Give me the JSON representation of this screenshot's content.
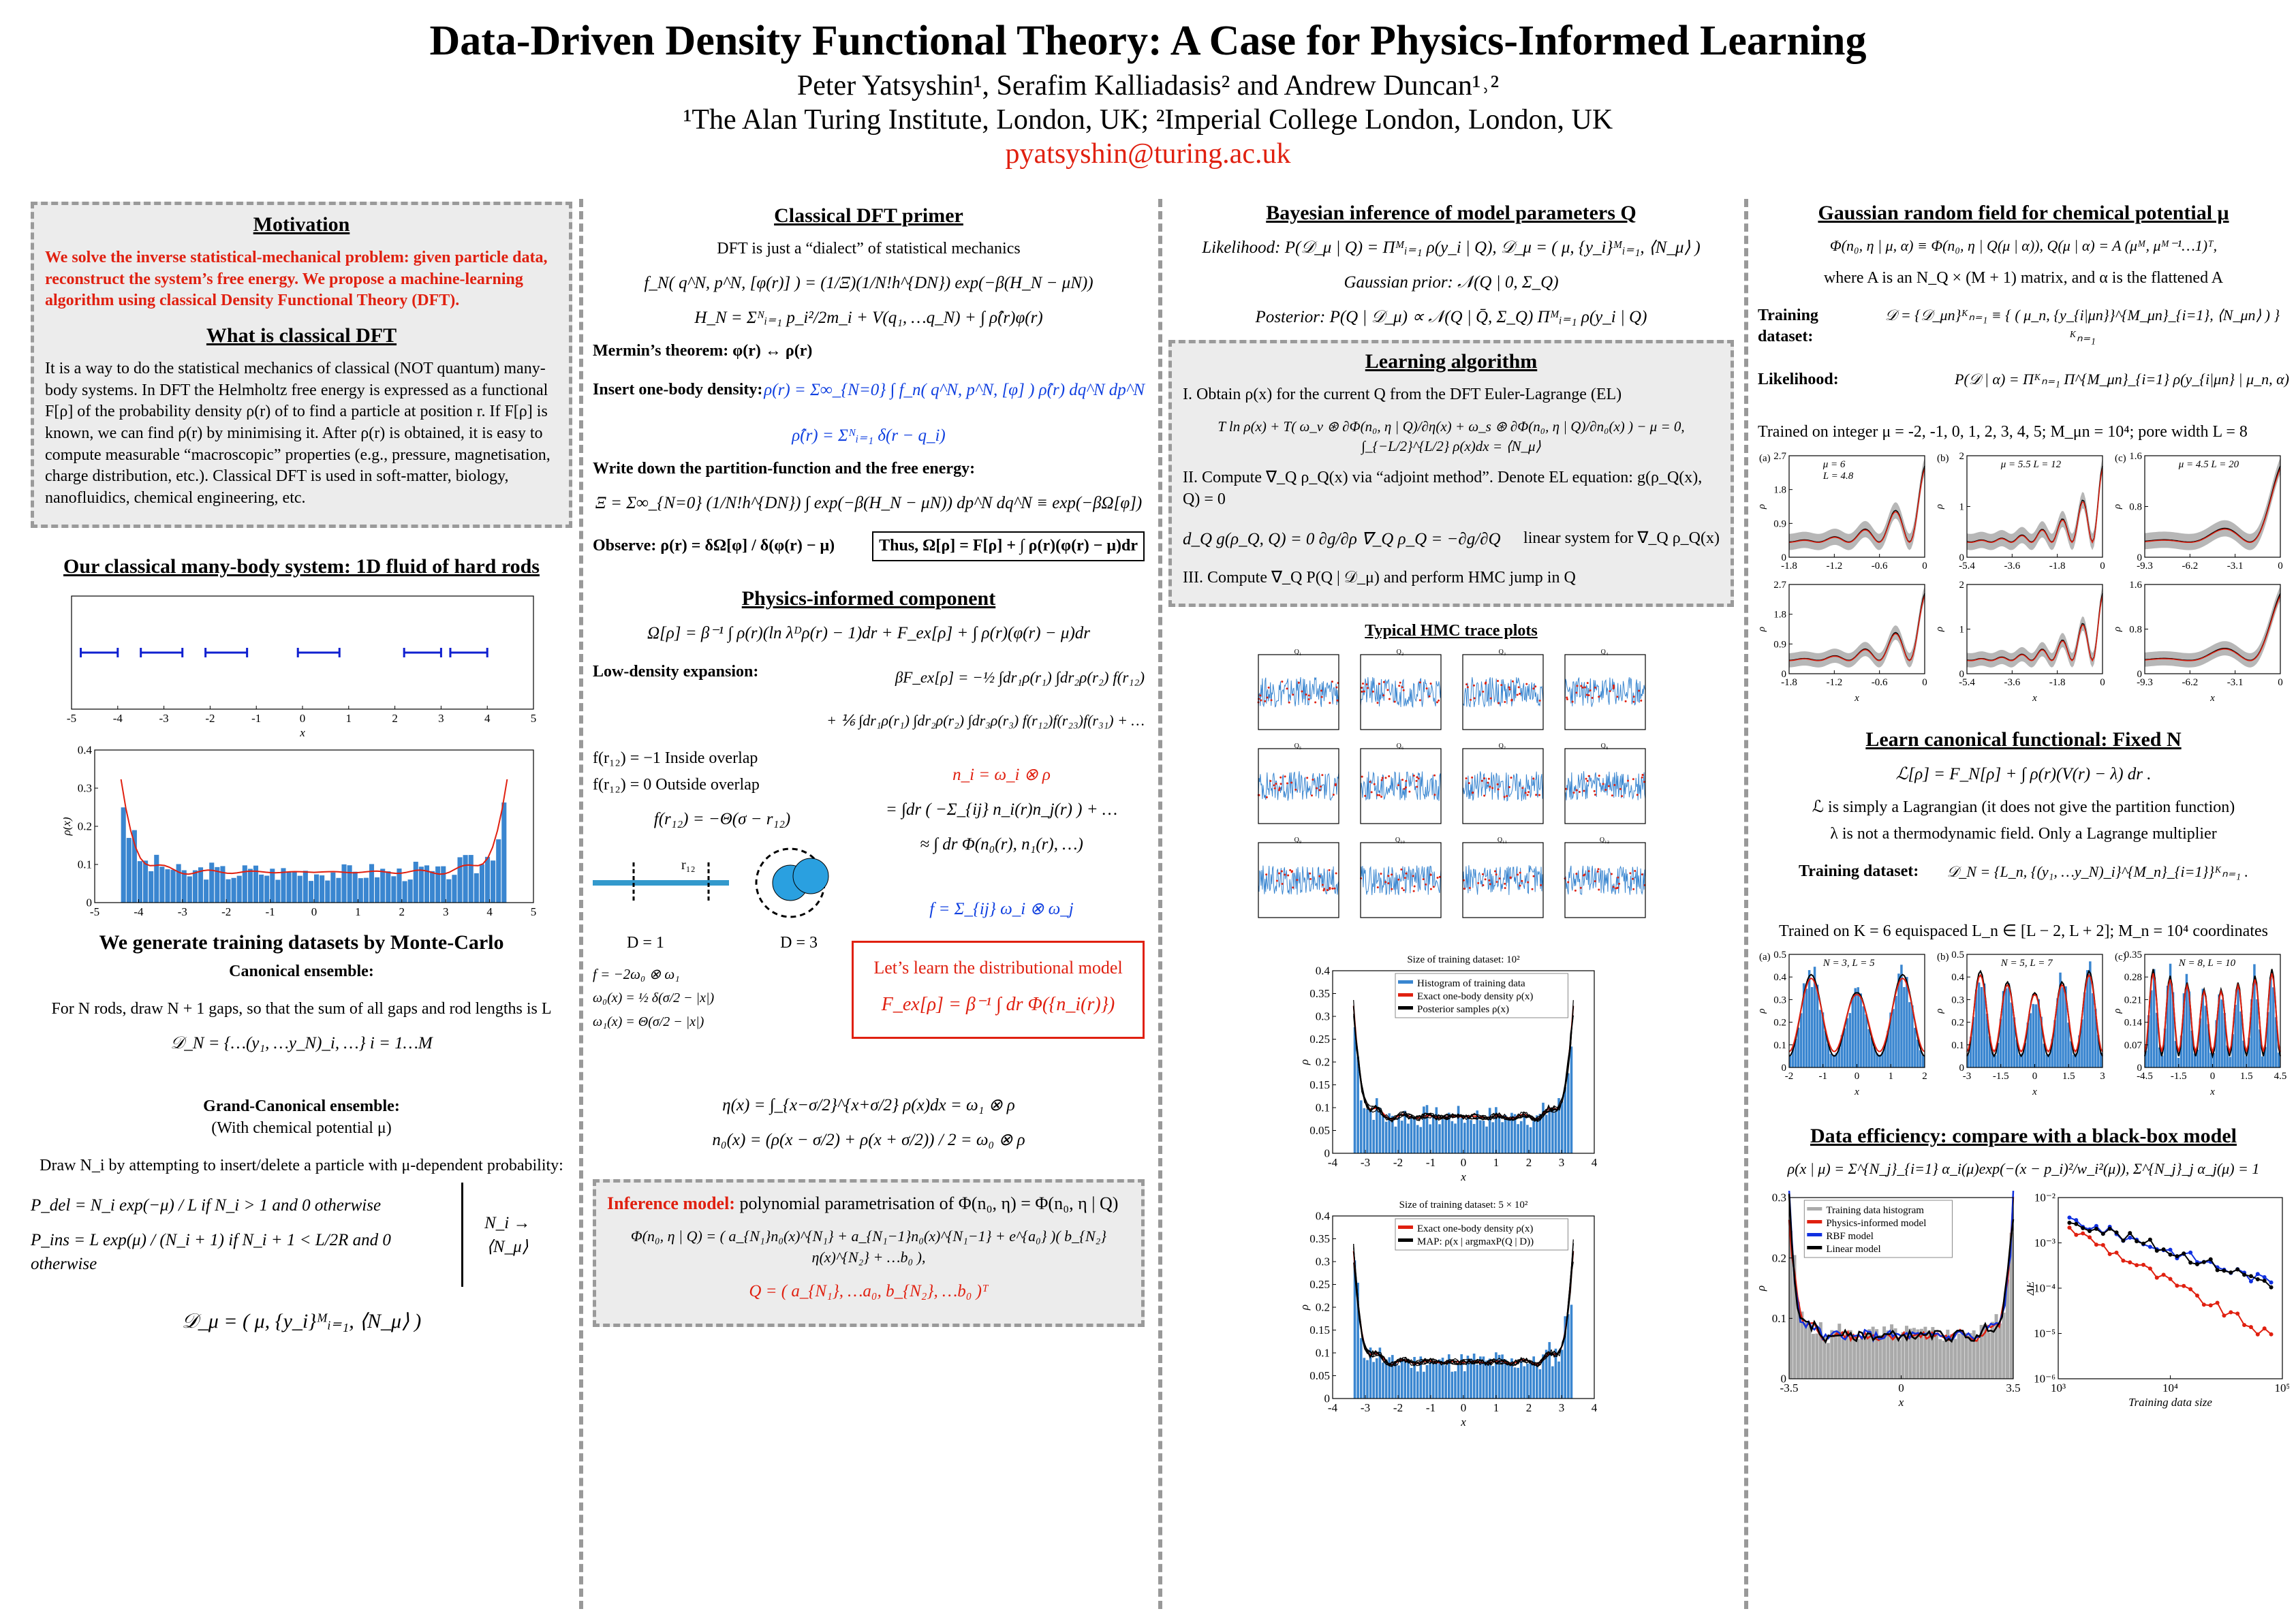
{
  "header": {
    "title": "Data-Driven Density Functional Theory: A Case for Physics-Informed Learning",
    "authors": "Peter Yatsyshin¹, Serafim Kalliadasis² and Andrew Duncan¹˒²",
    "affiliation": "¹The Alan Turing Institute, London, UK; ²Imperial College London, London, UK",
    "email": "pyatsyshin@turing.ac.uk"
  },
  "motivation": {
    "heading": "Motivation",
    "text": "We solve the inverse statistical-mechanical problem: given particle data, reconstruct the system’s free energy. We propose a machine-learning algorithm using classical Density Functional Theory (DFT).",
    "dft_heading": "What is classical DFT",
    "dft_text": "It is a way to do the statistical mechanics of classical (NOT quantum) many-body systems. In DFT the Helmholtz free energy is expressed as a functional F[ρ] of the probability density ρ(r) of to find a particle at position r. If F[ρ] is known, we can find ρ(r) by minimising it. After ρ(r) is obtained, it is easy to compute measurable “macroscopic” properties (e.g., pressure, magnetisation, charge distribution, etc.). Classical DFT is used in soft-matter, biology, nanofluidics, chemical engineering, etc."
  },
  "rods": {
    "heading": "Our classical many-body system: 1D fluid of hard rods",
    "positions": {
      "x_ticks": [
        "-5",
        "-4",
        "-3",
        "-2",
        "-1",
        "0",
        "1",
        "2",
        "3",
        "4",
        "5"
      ],
      "x_label": "x"
    },
    "density": {
      "x_ticks": [
        "-5",
        "-4",
        "-3",
        "-2",
        "-1",
        "0",
        "1",
        "2",
        "3",
        "4",
        "5"
      ],
      "y_ticks": [
        "0",
        "0.1",
        "0.2",
        "0.3",
        "0.4"
      ],
      "y_label": "ρ(x)"
    }
  },
  "mc": {
    "heading": "We generate training datasets by Monte-Carlo",
    "canonical": "Canonical ensemble:",
    "canonical_text": "For N rods, draw N + 1 gaps, so that the sum of all gaps and rod lengths is L",
    "canonical_eq": "𝒟_N = {…(y₁, …y_N)_i, …}     i = 1…M",
    "grand": "Grand-Canonical ensemble:",
    "grand_sub": "(With chemical potential μ)",
    "grand_text": "Draw N_i by attempting to insert/delete a particle with μ-dependent probability:",
    "p_del": "P_del = N_i exp(−μ) / L   if  N_i > 1  and  0  otherwise",
    "p_ins": "P_ins = L exp(μ) / (N_i + 1)   if  N_i + 1 < L/2R  and  0  otherwise",
    "limit": "N_i → ⟨N_μ⟩",
    "d_mu": "𝒟_μ = ( μ, {y_i}ᴹᵢ₌₁, ⟨N_μ⟩ )"
  },
  "primer": {
    "heading": "Classical DFT primer",
    "intro": "DFT is just a “dialect” of statistical mechanics",
    "eq1": "f_N( q^N, p^N, [φ(r)] ) = (1/Ξ)(1/N!h^{DN}) exp(−β(H_N − μN))",
    "eq2": "H_N = Σᴺᵢ₌₁ p_i²/2m_i + V(q₁, …q_N) + ∫ ρ̂(r)φ(r)",
    "mermin": "Mermin’s theorem:  φ(r) ↔ ρ(r)",
    "insert_label": "Insert one-body density:",
    "insert_eq": "ρ(r) = Σ∞_{N=0} ∫ f_n( q^N, p^N, [φ] ) ρ̂(r) dq^N dp^N",
    "insert_eq2": "ρ̂(r) = Σᴺᵢ₌₁ δ(r − q_i)",
    "partition_label": "Write down the partition-function and the free energy:",
    "partition_eq": "Ξ = Σ∞_{N=0} (1/N!h^{DN}) ∫ exp(−β(H_N − μN)) dp^N dq^N ≡ exp(−βΩ[φ])",
    "observe": "Observe:  ρ(r) = δΩ[φ] / δ(φ(r) − μ)",
    "thus": "Thus,  Ω[ρ] = F[ρ] + ∫ ρ(r)(φ(r) − μ)dr"
  },
  "physics": {
    "heading": "Physics-informed component",
    "omega_eq": "Ω[ρ] = β⁻¹ ∫ ρ(r)(ln λᴰρ(r) − 1)dr + F_ex[ρ] + ∫ ρ(r)(φ(r) − μ)dr",
    "low_label": "Low-density expansion:",
    "low_eq": "βF_ex[ρ] = −½ ∫dr₁ρ(r₁) ∫dr₂ρ(r₂) f(r₁₂)",
    "low_eq2": "+ ⅙ ∫dr₁ρ(r₁) ∫dr₂ρ(r₂) ∫dr₃ρ(r₃) f(r₁₂)f(r₂₃)f(r₃₁) + …",
    "f1": "f(r₁₂) = −1   Inside overlap",
    "f2": "f(r₁₂) = 0     Outside overlap",
    "f3": "f(r₁₂) = −Θ(σ − r₁₂)",
    "ni": "n_i = ω_i ⊗ ρ",
    "int1": "= ∫dr ( −Σ_{ij} n_i(r)n_j(r) ) + …",
    "int2": "≈ ∫ dr Φ(n₀(r), n₁(r), …)",
    "r12": "r₁₂",
    "d1": "D = 1",
    "d3": "D = 3",
    "d1_f": "f = −2ω₀ ⊗ ω₁",
    "d1_w0": "ω₀(x) = ½ δ(σ/2 − |x|)",
    "d1_w1": "ω₁(x) = Θ(σ/2 − |x|)",
    "fsum": "f = Σ_{ij} ω_i ⊗ ω_j",
    "box_title": "Let’s learn the distributional model",
    "box_eq": "F_ex[ρ] = β⁻¹ ∫ dr Φ({n_i(r)})",
    "eta_eq": "η(x) = ∫_{x−σ/2}^{x+σ/2} ρ(x)dx = ω₁ ⊗ ρ",
    "n0_eq": "n₀(x) = (ρ(x − σ/2) + ρ(x + σ/2)) / 2 = ω₀ ⊗ ρ"
  },
  "inference": {
    "label": "Inference model:",
    "text": "polynomial parametrisation of Φ(n₀, η) = Φ(n₀, η | Q)",
    "phi_eq": "Φ(n₀, η | Q) = ( a_{N₁}n₀(x)^{N₁} + a_{N₁−1}n₀(x)^{N₁−1} + e^{a₀} )( b_{N₂}η(x)^{N₂} + …b₀ ),",
    "q_eq": "Q = ( a_{N₁}, …a₀, b_{N₂}, …b₀ )ᵀ"
  },
  "bayes": {
    "heading": "Bayesian inference of model parameters Q",
    "likelihood": "Likelihood:  P(𝒟_μ | Q) = Πᴹᵢ₌₁ ρ(y_i | Q),   𝒟_μ = ( μ, {y_i}ᴹᵢ₌₁, ⟨N_μ⟩ )",
    "prior": "Gaussian prior:  𝒩(Q | 0, Σ_Q)",
    "posterior": "Posterior:  P(Q | 𝒟_μ) ∝ 𝒩(Q | Q̄, Σ_Q) Πᴹᵢ₌₁ ρ(y_i | Q)"
  },
  "learning": {
    "heading": "Learning algorithm",
    "step1": "I.      Obtain ρ(x) for the current Q from the DFT Euler-Lagrange (EL)",
    "eq1": "T ln ρ(x) + T( ω_v ⊛ ∂Φ(n₀, η | Q)/∂η(x) + ω_s ⊛ ∂Φ(n₀, η | Q)/∂n₀(x) ) − μ = 0,   ∫_{−L/2}^{L/2} ρ(x)dx = ⟨N_μ⟩",
    "step2": "II.  Compute ∇_Q ρ_Q(x) via “adjoint method”. Denote EL equation: g(ρ_Q(x), Q) = 0",
    "eq2": "d_Q g(ρ_Q, Q) = 0       ∂g/∂ρ ∇_Q ρ_Q = −∂g/∂Q",
    "linear": "linear system for ∇_Q ρ_Q(x)",
    "step3": "III. Compute ∇_Q P(Q | 𝒟_μ) and perform HMC jump in Q"
  },
  "hmc": {
    "heading": "Typical HMC trace plots",
    "titles": [
      "Q₁",
      "Q₂",
      "Q₃",
      "Q₄",
      "Q₅",
      "Q₆",
      "Q₇",
      "Q₈",
      "Q₉",
      "Q₁₀",
      "Q₁₁",
      "Q₁₂"
    ]
  },
  "hist": [
    {
      "title": "Size of training dataset: 10²",
      "legend": [
        "Histogram of training data",
        "Exact one-body density ρ(x)",
        "Posterior samples ρ(x)"
      ],
      "legend_colors": [
        "#3a86d0",
        "#e02010",
        "#000000"
      ],
      "x_ticks": [
        "-4",
        "-3",
        "-2",
        "-1",
        "0",
        "1",
        "2",
        "3",
        "4"
      ],
      "y_ticks": [
        "0",
        "0.05",
        "0.1",
        "0.15",
        "0.2",
        "0.25",
        "0.3",
        "0.35",
        "0.4"
      ],
      "x_label": "x",
      "y_label": "ρ"
    },
    {
      "title": "Size of training dataset: 5 × 10²",
      "legend": [
        "Exact one-body density ρ(x)",
        "MAP: ρ(x | argmaxP(Q | D))"
      ],
      "legend_colors": [
        "#e02010",
        "#000000"
      ],
      "x_ticks": [
        "-4",
        "-3",
        "-2",
        "-1",
        "0",
        "1",
        "2",
        "3",
        "4"
      ],
      "y_ticks": [
        "0",
        "0.05",
        "0.1",
        "0.15",
        "0.2",
        "0.25",
        "0.3",
        "0.35",
        "0.4"
      ],
      "x_label": "x",
      "y_label": "ρ"
    }
  ],
  "grf": {
    "heading": "Gaussian random field for chemical potential μ",
    "eq1": "Φ(n₀, η | μ, α) ≡ Φ(n₀, η | Q(μ | α)),    Q(μ | α) = A (μᴹ, μᴹ⁻¹…1)ᵀ,",
    "eq2": "where A is an N_Q × (M + 1) matrix, and α is the flattened A",
    "train_label": "Training dataset:",
    "train_eq": "𝒟 = {𝒟_μn}ᴷₙ₌₁ ≡ { ( μ_n, {y_{i|μn}}^{M_μn}_{i=1}, ⟨N_μn⟩ ) }ᴷₙ₌₁",
    "lik_label": "Likelihood:",
    "lik_eq": "P(𝒟 | α) = Πᴷₙ₌₁ Π^{M_μn}_{i=1} ρ(y_{i|μn} | μ_n, α)",
    "trained": "Trained on integer μ = -2, -1, 0, 1, 2, 3, 4, 5; M_μn = 10⁴; pore width L = 8",
    "panels": [
      {
        "tag": "(a)",
        "notes": [
          "μ = 6",
          "L = 4.8"
        ],
        "x_ticks": [
          "-1.8",
          "-1.2",
          "-0.6",
          "0"
        ],
        "y_ticks": [
          "0",
          "0.9",
          "1.8",
          "2.7"
        ],
        "y_label": "ρ"
      },
      {
        "tag": "(b)",
        "notes": [
          "μ = 5.5  L = 12"
        ],
        "x_ticks": [
          "-5.4",
          "-3.6",
          "-1.8",
          "0"
        ],
        "y_ticks": [
          "0",
          "1",
          "2"
        ],
        "y_label": "ρ"
      },
      {
        "tag": "(c)",
        "notes": [
          "μ = 4.5  L = 20"
        ],
        "x_ticks": [
          "-9.3",
          "-6.2",
          "-3.1",
          "0"
        ],
        "y_ticks": [
          "0",
          "0.8",
          "1.6"
        ],
        "y_label": "ρ"
      },
      {
        "x_ticks": [
          "-1.8",
          "-1.2",
          "-0.6",
          "0"
        ],
        "y_ticks": [
          "0",
          "0.9",
          "1.8",
          "2.7"
        ],
        "y_label": "ρ",
        "x_label": "x"
      },
      {
        "x_ticks": [
          "-5.4",
          "-3.6",
          "-1.8",
          "0"
        ],
        "y_ticks": [
          "0",
          "1",
          "2"
        ],
        "y_label": "ρ",
        "x_label": "x"
      },
      {
        "x_ticks": [
          "-9.3",
          "-6.2",
          "-3.1",
          "0"
        ],
        "y_ticks": [
          "0",
          "0.8",
          "1.6"
        ],
        "y_label": "ρ",
        "x_label": "x"
      }
    ]
  },
  "canon": {
    "heading": "Learn canonical functional: Fixed N",
    "eq": "ℒ[ρ] = F_N[ρ] + ∫ ρ(r)(V(r) − λ) dr .",
    "t1": "ℒ is simply a Lagrangian (it does not give the partition function)",
    "t2": "λ is not a thermodynamic field. Only a Lagrange multiplier",
    "train_label": "Training dataset:",
    "train_eq": "𝒟_N = {L_n, {(y₁, …y_N)_i}^{M_n}_{i=1}}ᴷₙ₌₁ .",
    "trained": "Trained on K = 6 equispaced L_n ∈ [L − 2,   L + 2]; M_n = 10⁴ coordinates",
    "panels": [
      {
        "tag": "(a)",
        "notes": [
          "N = 3, L = 5"
        ],
        "x_ticks": [
          "-2",
          "-1",
          "0",
          "1",
          "2"
        ],
        "y_ticks": [
          "0",
          "0.1",
          "0.2",
          "0.3",
          "0.4",
          "0.5"
        ],
        "y_label": "ρ",
        "x_label": "x"
      },
      {
        "tag": "(b)",
        "notes": [
          "N = 5, L = 7"
        ],
        "x_ticks": [
          "-3",
          "-1.5",
          "0",
          "1.5",
          "3"
        ],
        "y_ticks": [
          "0",
          "0.1",
          "0.2",
          "0.3",
          "0.4",
          "0.5"
        ],
        "y_label": "ρ",
        "x_label": "x"
      },
      {
        "tag": "(c)",
        "notes": [
          "N = 8, L = 10"
        ],
        "x_ticks": [
          "-4.5",
          "-1.5",
          "0",
          "1.5",
          "4.5"
        ],
        "y_ticks": [
          "0",
          "0.07",
          "0.14",
          "0.21",
          "0.28",
          "0.35"
        ],
        "y_label": "ρ",
        "x_label": "x"
      }
    ]
  },
  "eff": {
    "heading": "Data efficiency: compare with a black-box model",
    "eq": "ρ(x | μ) = Σ^{N_j}_{i=1} α_i(μ)exp(−(x − p_i)²/w_i²(μ)),   Σ^{N_j}_j α_j(μ) = 1",
    "left": {
      "legend": [
        "Training data histogram",
        "Physics-informed model",
        "RBF model",
        "Linear model"
      ],
      "legend_colors": [
        "#aaaaaa",
        "#e02010",
        "#1030e0",
        "#000000"
      ],
      "x_ticks": [
        "-3.5",
        "0",
        "3.5"
      ],
      "y_ticks": [
        "0",
        "0.1",
        "0.2",
        "0.3"
      ],
      "x_label": "x",
      "y_label": "ρ"
    },
    "right": {
      "x_ticks": [
        "10³",
        "10⁴",
        "10⁵"
      ],
      "y_ticks": [
        "10⁻⁶",
        "10⁻⁵",
        "10⁻⁴",
        "10⁻³",
        "10⁻²"
      ],
      "x_label": "Training data size",
      "y_label": "ΔE"
    }
  }
}
